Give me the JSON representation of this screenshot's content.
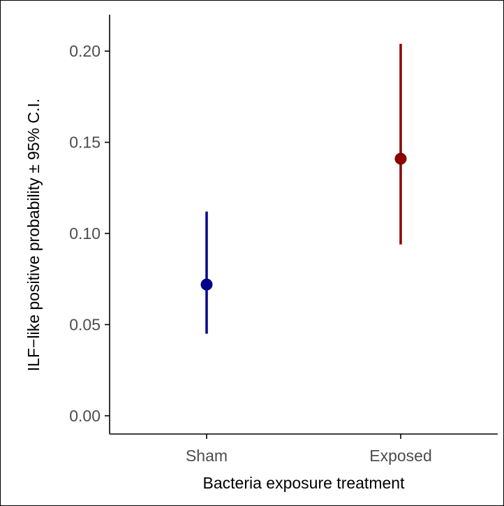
{
  "chart_data": {
    "type": "scatter",
    "title": "",
    "xlabel": "Bacteria exposure treatment",
    "ylabel": "ILF−like positive probability ± 95% C.I.",
    "categories": [
      "Sham",
      "Exposed"
    ],
    "points": [
      {
        "category": "Sham",
        "estimate": 0.072,
        "lower": 0.045,
        "upper": 0.112,
        "color": "#00008b"
      },
      {
        "category": "Exposed",
        "estimate": 0.141,
        "lower": 0.094,
        "upper": 0.204,
        "color": "#8b0000"
      }
    ],
    "yticks": [
      0.0,
      0.05,
      0.1,
      0.15,
      0.2
    ],
    "ytick_labels": [
      "0.00",
      "0.05",
      "0.10",
      "0.15",
      "0.20"
    ],
    "ylim": [
      -0.01,
      0.22
    ],
    "grid": false,
    "legend": "none"
  }
}
